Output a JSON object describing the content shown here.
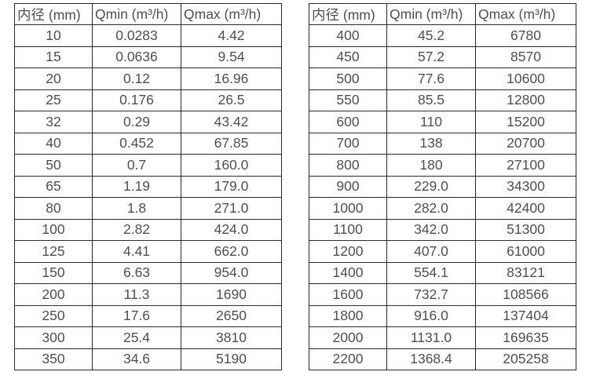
{
  "colors": {
    "text": "#4f4f4f",
    "border": "#2a2a2a",
    "background": "#ffffff"
  },
  "tables": [
    {
      "name": "small-diameters",
      "headers": [
        "内径 (mm)",
        "Qmin (m³/h)",
        "Qmax (m³/h)"
      ],
      "rows": [
        [
          "10",
          "0.0283",
          "4.42"
        ],
        [
          "15",
          "0.0636",
          "9.54"
        ],
        [
          "20",
          "0.12",
          "16.96"
        ],
        [
          "25",
          "0.176",
          "26.5"
        ],
        [
          "32",
          "0.29",
          "43.42"
        ],
        [
          "40",
          "0.452",
          "67.85"
        ],
        [
          "50",
          "0.7",
          "160.0"
        ],
        [
          "65",
          "1.19",
          "179.0"
        ],
        [
          "80",
          "1.8",
          "271.0"
        ],
        [
          "100",
          "2.82",
          "424.0"
        ],
        [
          "125",
          "4.41",
          "662.0"
        ],
        [
          "150",
          "6.63",
          "954.0"
        ],
        [
          "200",
          "11.3",
          "1690"
        ],
        [
          "250",
          "17.6",
          "2650"
        ],
        [
          "300",
          "25.4",
          "3810"
        ],
        [
          "350",
          "34.6",
          "5190"
        ]
      ]
    },
    {
      "name": "large-diameters",
      "headers": [
        "内径 (mm)",
        "Qmin (m³/h)",
        "Qmax (m³/h)"
      ],
      "rows": [
        [
          "400",
          "45.2",
          "6780"
        ],
        [
          "450",
          "57.2",
          "8570"
        ],
        [
          "500",
          "77.6",
          "10600"
        ],
        [
          "550",
          "85.5",
          "12800"
        ],
        [
          "600",
          "110",
          "15200"
        ],
        [
          "700",
          "138",
          "20700"
        ],
        [
          "800",
          "180",
          "27100"
        ],
        [
          "900",
          "229.0",
          "34300"
        ],
        [
          "1000",
          "282.0",
          "42400"
        ],
        [
          "1100",
          "342.0",
          "51300"
        ],
        [
          "1200",
          "407.0",
          "61000"
        ],
        [
          "1400",
          "554.1",
          "83121"
        ],
        [
          "1600",
          "732.7",
          "108566"
        ],
        [
          "1800",
          "916.0",
          "137404"
        ],
        [
          "2000",
          "1131.0",
          "169635"
        ],
        [
          "2200",
          "1368.4",
          "205258"
        ]
      ]
    }
  ]
}
